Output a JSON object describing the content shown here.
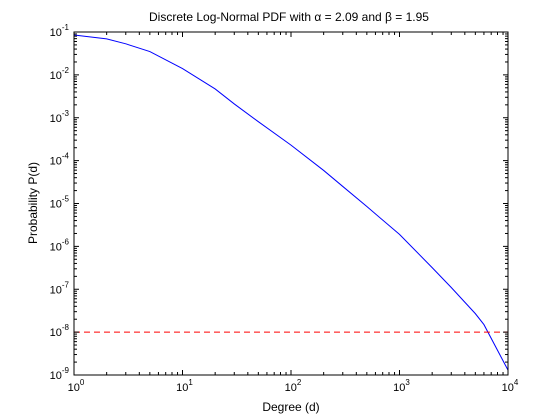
{
  "figure": {
    "background": "#ffffff",
    "axes_color": "#000000"
  },
  "chart_data": {
    "type": "line",
    "title": "Discrete Log-Normal PDF with α = 2.09 and β = 1.95",
    "title_parts": {
      "prefix": "Discrete Log-Normal PDF with ",
      "alpha_symbol": "α",
      "alpha_text": " = 2.09 and ",
      "beta_symbol": "β",
      "beta_text": " = 1.95"
    },
    "xlabel": "Degree (d)",
    "ylabel": "Probability P(d)",
    "xscale": "log",
    "yscale": "log",
    "xlim": [
      1,
      10000
    ],
    "ylim": [
      1e-09,
      0.1
    ],
    "grid": false,
    "xticks": [
      {
        "base": "10",
        "exp": "0",
        "value": 1
      },
      {
        "base": "10",
        "exp": "1",
        "value": 10
      },
      {
        "base": "10",
        "exp": "2",
        "value": 100
      },
      {
        "base": "10",
        "exp": "3",
        "value": 1000
      },
      {
        "base": "10",
        "exp": "4",
        "value": 10000
      }
    ],
    "yticks": [
      {
        "base": "10",
        "exp": "-9",
        "value": 1e-09
      },
      {
        "base": "10",
        "exp": "-8",
        "value": 1e-08
      },
      {
        "base": "10",
        "exp": "-7",
        "value": 1e-07
      },
      {
        "base": "10",
        "exp": "-6",
        "value": 1e-06
      },
      {
        "base": "10",
        "exp": "-5",
        "value": 1e-05
      },
      {
        "base": "10",
        "exp": "-4",
        "value": 0.0001
      },
      {
        "base": "10",
        "exp": "-3",
        "value": 0.001
      },
      {
        "base": "10",
        "exp": "-2",
        "value": 0.01
      },
      {
        "base": "10",
        "exp": "-1",
        "value": 0.1
      }
    ],
    "series": [
      {
        "style": "solid",
        "color": "#0000ff",
        "x": [
          1,
          2,
          3,
          5,
          10,
          20,
          30,
          50,
          100,
          200,
          300,
          500,
          1000,
          2000,
          3000,
          5000,
          6000,
          10000
        ],
        "y": [
          0.085,
          0.069,
          0.053,
          0.035,
          0.014,
          0.0047,
          0.0021,
          0.00081,
          0.00023,
          5.9e-05,
          2.5e-05,
          8.5e-06,
          1.9e-06,
          3.2e-07,
          1.1e-07,
          2.7e-08,
          1.5e-08,
          1.3e-09
        ]
      },
      {
        "style": "dashed",
        "color": "#ff0000",
        "x": [
          1,
          10000
        ],
        "y": [
          1e-08,
          1e-08
        ]
      }
    ]
  }
}
